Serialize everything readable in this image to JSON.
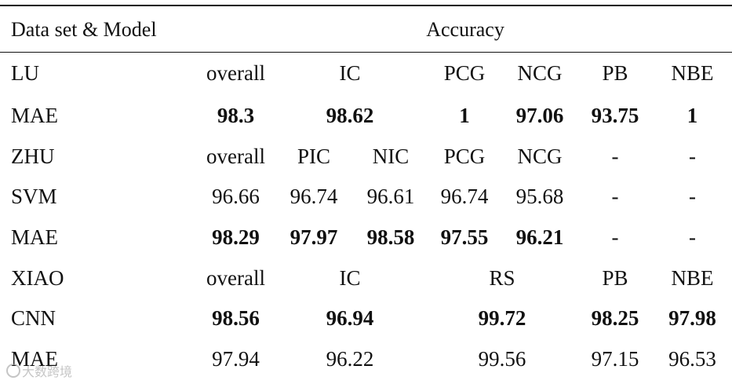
{
  "table": {
    "header": {
      "label": "Data set & Model",
      "accuracy": "Accuracy"
    },
    "rows": [
      {
        "id": "lu",
        "label": "LU",
        "bold": false,
        "cells": [
          {
            "text": "overall"
          },
          {
            "text": "IC",
            "span": 2
          },
          {
            "text": "PCG"
          },
          {
            "text": "NCG"
          },
          {
            "text": "PB"
          },
          {
            "text": "NBE"
          }
        ]
      },
      {
        "id": "lu-mae",
        "label": "MAE",
        "bold": true,
        "cells": [
          {
            "text": "98.3"
          },
          {
            "text": "98.62",
            "span": 2
          },
          {
            "text": "1"
          },
          {
            "text": "97.06"
          },
          {
            "text": "93.75"
          },
          {
            "text": "1"
          }
        ]
      },
      {
        "id": "zhu",
        "label": "ZHU",
        "bold": false,
        "cells": [
          {
            "text": "overall"
          },
          {
            "text": "PIC"
          },
          {
            "text": "NIC"
          },
          {
            "text": "PCG"
          },
          {
            "text": "NCG"
          },
          {
            "text": "-"
          },
          {
            "text": "-"
          }
        ]
      },
      {
        "id": "zhu-svm",
        "label": "SVM",
        "bold": false,
        "cells": [
          {
            "text": "96.66"
          },
          {
            "text": "96.74"
          },
          {
            "text": "96.61"
          },
          {
            "text": "96.74"
          },
          {
            "text": "95.68"
          },
          {
            "text": "-"
          },
          {
            "text": "-"
          }
        ]
      },
      {
        "id": "zhu-mae",
        "label": "MAE",
        "bold": true,
        "cells": [
          {
            "text": "98.29"
          },
          {
            "text": "97.97"
          },
          {
            "text": "98.58"
          },
          {
            "text": "97.55"
          },
          {
            "text": "96.21"
          },
          {
            "text": "-",
            "plain": true
          },
          {
            "text": "-",
            "plain": true
          }
        ]
      },
      {
        "id": "xiao",
        "label": "XIAO",
        "bold": false,
        "cells": [
          {
            "text": "overall"
          },
          {
            "text": "IC",
            "span": 2
          },
          {
            "text": "RS",
            "span": 2
          },
          {
            "text": "PB"
          },
          {
            "text": "NBE"
          }
        ]
      },
      {
        "id": "xiao-cnn",
        "label": "CNN",
        "bold": true,
        "cells": [
          {
            "text": "98.56"
          },
          {
            "text": "96.94",
            "span": 2
          },
          {
            "text": "99.72",
            "span": 2
          },
          {
            "text": "98.25"
          },
          {
            "text": "97.98"
          }
        ]
      },
      {
        "id": "xiao-mae",
        "label": "MAE",
        "bold": false,
        "cells": [
          {
            "text": "97.94"
          },
          {
            "text": "96.22",
            "span": 2
          },
          {
            "text": "99.56",
            "span": 2
          },
          {
            "text": "97.15"
          },
          {
            "text": "96.53"
          }
        ]
      }
    ]
  },
  "watermark": {
    "text": "大数跨境"
  }
}
